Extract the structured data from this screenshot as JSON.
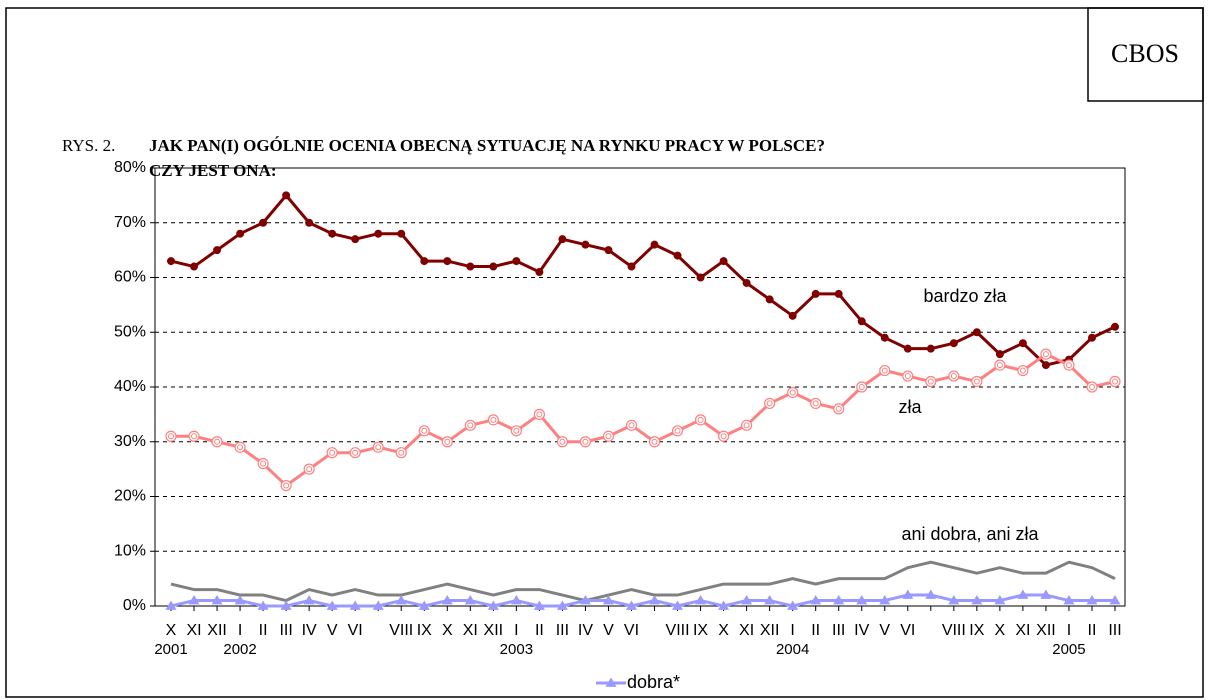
{
  "chart_data": {
    "type": "line",
    "badge": "CBOS",
    "figure_label": "RYS. 2.",
    "title_lines": [
      "JAK PAN(I) OGÓLNIE OCENIA OBECNĄ SYTUACJĘ NA RYNKU PRACY W POLSCE?",
      "CZY JEST ONA:"
    ],
    "categories": [
      "X",
      "XI",
      "XII",
      "I",
      "II",
      "III",
      "IV",
      "V",
      "VI",
      null,
      "VIII",
      "IX",
      "X",
      "XI",
      "XII",
      "I",
      "II",
      "III",
      "IV",
      "V",
      "VI",
      null,
      "VIII",
      "IX",
      "X",
      "XI",
      "XII",
      "I",
      "II",
      "III",
      "IV",
      "V",
      "VI",
      null,
      "VIII",
      "IX",
      "X",
      "XI",
      "XII",
      "I",
      "II",
      "III"
    ],
    "category_years": [
      "2001",
      null,
      null,
      "2002",
      null,
      null,
      null,
      null,
      null,
      null,
      null,
      null,
      null,
      null,
      null,
      "2003",
      null,
      null,
      null,
      null,
      null,
      null,
      null,
      null,
      null,
      null,
      null,
      "2004",
      null,
      null,
      null,
      null,
      null,
      null,
      null,
      null,
      null,
      null,
      null,
      "2005",
      null,
      null
    ],
    "ylim": [
      0,
      80
    ],
    "yticks": [
      {
        "value": 0,
        "label": "0%"
      },
      {
        "value": 10,
        "label": "10%"
      },
      {
        "value": 20,
        "label": "20%"
      },
      {
        "value": 30,
        "label": "30%"
      },
      {
        "value": 40,
        "label": "40%"
      },
      {
        "value": 50,
        "label": "50%"
      },
      {
        "value": 60,
        "label": "60%"
      },
      {
        "value": 70,
        "label": "70%"
      },
      {
        "value": 80,
        "label": "80%"
      }
    ],
    "grid": true,
    "series": [
      {
        "name": "bardzo zła",
        "color": "#800000",
        "marker": "dot",
        "label": "inline",
        "values": [
          63,
          62,
          65,
          68,
          70,
          75,
          70,
          68,
          67,
          68,
          68,
          63,
          63,
          62,
          62,
          63,
          61,
          67,
          66,
          65,
          62,
          66,
          64,
          60,
          63,
          59,
          56,
          53,
          57,
          57,
          52,
          49,
          47,
          47,
          48,
          50,
          46,
          48,
          44,
          45,
          49,
          51
        ]
      },
      {
        "name": "zła",
        "color": "#ff8080",
        "marker": "ring",
        "label": "inline",
        "values": [
          31,
          31,
          30,
          29,
          26,
          22,
          25,
          28,
          28,
          29,
          28,
          32,
          30,
          33,
          34,
          32,
          35,
          30,
          30,
          31,
          33,
          30,
          32,
          34,
          31,
          33,
          37,
          39,
          37,
          36,
          40,
          43,
          42,
          41,
          42,
          41,
          44,
          43,
          46,
          44,
          40,
          41
        ]
      },
      {
        "name": "ani dobra, ani zła",
        "color": "#808080",
        "marker": "none",
        "label": "inline",
        "values": [
          4,
          3,
          3,
          2,
          2,
          1,
          3,
          2,
          3,
          2,
          2,
          3,
          4,
          3,
          2,
          3,
          3,
          2,
          1,
          2,
          3,
          2,
          2,
          3,
          4,
          4,
          4,
          5,
          4,
          5,
          5,
          5,
          7,
          8,
          7,
          6,
          7,
          6,
          6,
          8,
          7,
          5
        ]
      },
      {
        "name": "dobra*",
        "color": "#9999ff",
        "marker": "star",
        "label": "legend",
        "values": [
          0,
          1,
          1,
          1,
          0,
          0,
          1,
          0,
          0,
          0,
          1,
          0,
          1,
          1,
          0,
          1,
          0,
          0,
          1,
          1,
          0,
          1,
          0,
          1,
          0,
          1,
          1,
          0,
          1,
          1,
          1,
          1,
          2,
          2,
          1,
          1,
          1,
          2,
          2,
          1,
          1,
          1
        ]
      }
    ]
  }
}
